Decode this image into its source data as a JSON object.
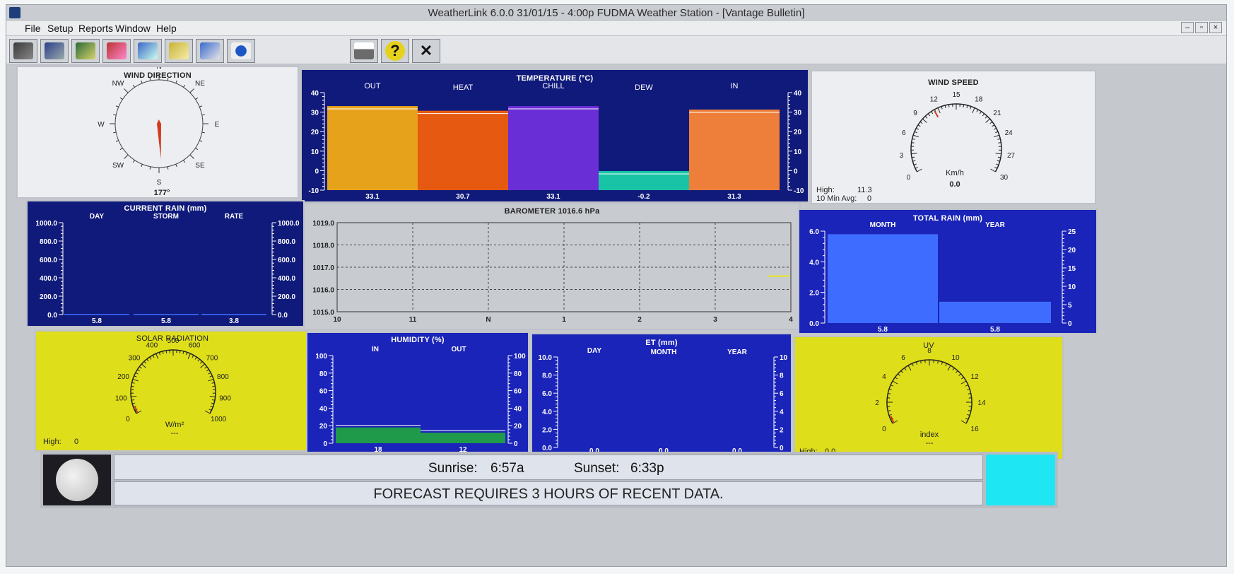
{
  "window": {
    "title": "WeatherLink 6.0.0  31/01/15 - 4:00p  FUDMA Weather Station - [Vantage Bulletin]"
  },
  "menu": [
    "File",
    "Setup",
    "Reports",
    "Window",
    "Help"
  ],
  "toolbar": {
    "left_icons": [
      "station-icon",
      "computer-link-icon",
      "weather-data-icon",
      "plot-icon",
      "browse-icon",
      "notes-icon",
      "summary-icon",
      "noaa-icon"
    ],
    "right_icons": [
      "print-icon",
      "help-icon",
      "close-icon"
    ],
    "help_label": "?",
    "close_label": "✕"
  },
  "wind_direction": {
    "title": "WIND DIRECTION",
    "compass": [
      "N",
      "NE",
      "E",
      "SE",
      "S",
      "SW",
      "W",
      "NW"
    ],
    "degrees": 177,
    "value_label": "177°"
  },
  "temperature": {
    "title": "TEMPERATURE (°C)",
    "axis_ticks": [
      "40",
      "30",
      "20",
      "10",
      "0",
      "-10"
    ],
    "categories": [
      "OUT",
      "HEAT",
      "CHILL",
      "DEW",
      "IN"
    ],
    "values": [
      33.1,
      30.7,
      33.1,
      -0.2,
      31.3
    ],
    "value_labels": [
      "33.1",
      "30.7",
      "33.1",
      "-0.2",
      "31.3"
    ],
    "colors": [
      "#e7a21c",
      "#e55a10",
      "#6a2ed6",
      "#19c4a6",
      "#ee7f3a"
    ]
  },
  "wind_speed": {
    "title": "WIND SPEED",
    "ticks": [
      "0",
      "3",
      "6",
      "9",
      "12",
      "15",
      "18",
      "21",
      "24",
      "27",
      "30"
    ],
    "unit": "Km/h",
    "value": "0.0",
    "high_label": "High:",
    "high_value": "11.3",
    "avg_label": "10 Min Avg:",
    "avg_value": "0"
  },
  "current_rain": {
    "title": "CURRENT RAIN  (mm)",
    "categories": [
      "DAY",
      "STORM",
      "RATE"
    ],
    "left_ticks": [
      "1000.0",
      "800.0",
      "600.0",
      "400.0",
      "200.0",
      "0.0"
    ],
    "right_ticks": [
      "1000.0",
      "800.0",
      "600.0",
      "400.0",
      "200.0",
      "0.0"
    ],
    "value_labels": [
      "5.8",
      "5.8",
      "3.8"
    ]
  },
  "barometer": {
    "title": "BAROMETER 1016.6 hPa",
    "y_ticks": [
      "1019.0",
      "1018.0",
      "1017.0",
      "1016.0",
      "1015.0"
    ],
    "x_ticks": [
      "10",
      "11",
      "N",
      "1",
      "2",
      "3",
      "4"
    ],
    "current": 1016.6
  },
  "total_rain": {
    "title": "TOTAL RAIN  (mm)",
    "categories": [
      "MONTH",
      "YEAR"
    ],
    "left_ticks": [
      "6.0",
      "4.0",
      "2.0",
      "0.0"
    ],
    "right_ticks": [
      "25",
      "20",
      "15",
      "10",
      "5",
      "0"
    ],
    "values": [
      5.8,
      5.8
    ],
    "value_labels": [
      "5.8",
      "5.8"
    ]
  },
  "solar_radiation": {
    "title": "SOLAR RADIATION",
    "ticks": [
      "0",
      "100",
      "200",
      "300",
      "400",
      "500",
      "600",
      "700",
      "800",
      "900",
      "1000"
    ],
    "unit": "W/m²",
    "value": "---",
    "high_label": "High:",
    "high_value": "0"
  },
  "humidity": {
    "title": "HUMIDITY  (%)",
    "categories": [
      "IN",
      "OUT"
    ],
    "ticks": [
      "100",
      "80",
      "60",
      "40",
      "20",
      "0"
    ],
    "values": [
      18,
      12
    ],
    "value_labels": [
      "18",
      "12"
    ]
  },
  "et": {
    "title": "ET (mm)",
    "categories": [
      "DAY",
      "MONTH",
      "YEAR"
    ],
    "left_ticks": [
      "10.0",
      "8.0",
      "6.0",
      "4.0",
      "2.0",
      "0.0"
    ],
    "right_ticks": [
      "10",
      "8",
      "6",
      "4",
      "2",
      "0"
    ],
    "value_labels": [
      "0.0",
      "0.0",
      "0.0"
    ]
  },
  "uv": {
    "title": "UV",
    "ticks": [
      "0",
      "2",
      "4",
      "6",
      "8",
      "10",
      "12",
      "14",
      "16"
    ],
    "unit": "index",
    "value": "---",
    "high_label": "High:",
    "high_value": "0.0"
  },
  "bottom": {
    "sunrise_label": "Sunrise:",
    "sunrise_value": "6:57a",
    "sunset_label": "Sunset:",
    "sunset_value": "6:33p",
    "forecast": "FORECAST REQUIRES 3 HOURS OF RECENT DATA."
  }
}
